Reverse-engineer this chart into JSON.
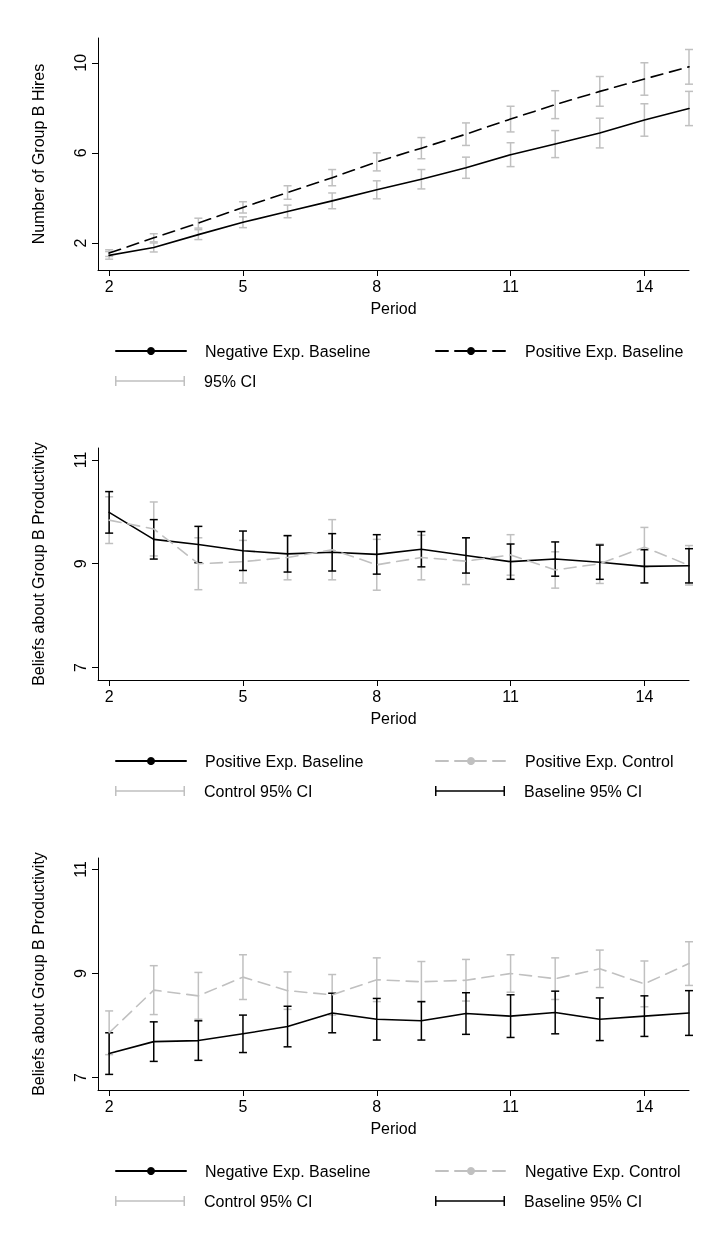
{
  "chart_data": [
    {
      "type": "line",
      "ylabel": "Number of Group B Hires",
      "xlabel": "Period",
      "x": [
        2,
        3,
        4,
        5,
        6,
        7,
        8,
        9,
        10,
        11,
        12,
        13,
        14,
        15
      ],
      "xlim": [
        1.75,
        15
      ],
      "xticks": [
        2,
        5,
        8,
        11,
        14
      ],
      "ylim": [
        0.8,
        11.1
      ],
      "yticks": [
        2,
        6,
        10
      ],
      "legend": "bottom",
      "annotations": [
        "95% CI"
      ],
      "series": [
        {
          "name": "Negative Exp. Baseline",
          "color": "#000000",
          "line_style": "solid",
          "values": [
            1.45,
            1.8,
            2.37,
            2.92,
            3.4,
            3.87,
            4.36,
            4.83,
            5.34,
            5.92,
            6.39,
            6.88,
            7.46,
            7.97
          ],
          "errors": [
            0.17,
            0.2,
            0.22,
            0.24,
            0.28,
            0.35,
            0.4,
            0.43,
            0.47,
            0.53,
            0.6,
            0.66,
            0.72,
            0.76
          ]
        },
        {
          "name": "Positive Exp. Baseline",
          "color": "#000000",
          "line_style": "dashed",
          "values": [
            1.55,
            2.23,
            2.88,
            3.58,
            4.24,
            4.9,
            5.6,
            6.21,
            6.83,
            7.5,
            8.14,
            8.73,
            9.28,
            9.82
          ],
          "errors": [
            0.15,
            0.18,
            0.22,
            0.25,
            0.3,
            0.36,
            0.4,
            0.47,
            0.5,
            0.57,
            0.62,
            0.66,
            0.72,
            0.77
          ]
        }
      ]
    },
    {
      "type": "line",
      "ylabel": "Beliefs about Group B Productivity",
      "xlabel": "Period",
      "x": [
        2,
        3,
        4,
        5,
        6,
        7,
        8,
        9,
        10,
        11,
        12,
        13,
        14,
        15
      ],
      "xlim": [
        1.75,
        15
      ],
      "xticks": [
        2,
        5,
        8,
        11,
        14
      ],
      "ylim": [
        6.76,
        11.23
      ],
      "yticks": [
        7,
        9,
        11
      ],
      "legend": "bottom",
      "annotations": [
        "Control 95% CI",
        "Baseline 95% CI"
      ],
      "series": [
        {
          "name": "Positive Exp. Baseline",
          "color": "#000000",
          "line_style": "solid",
          "values": [
            9.99,
            9.47,
            9.37,
            9.25,
            9.19,
            9.22,
            9.18,
            9.28,
            9.16,
            9.04,
            9.09,
            9.03,
            8.95,
            8.96
          ],
          "errors": [
            0.4,
            0.38,
            0.35,
            0.38,
            0.35,
            0.36,
            0.38,
            0.34,
            0.34,
            0.34,
            0.33,
            0.33,
            0.32,
            0.33
          ]
        },
        {
          "name": "Positive Exp. Control",
          "color": "#c0c0c0",
          "line_style": "dashed",
          "values": [
            9.84,
            9.67,
            9.0,
            9.04,
            9.12,
            9.27,
            8.98,
            9.12,
            9.05,
            9.17,
            8.88,
            9.0,
            9.32,
            8.97
          ],
          "errors": [
            0.45,
            0.52,
            0.5,
            0.41,
            0.43,
            0.58,
            0.49,
            0.43,
            0.45,
            0.39,
            0.35,
            0.38,
            0.38,
            0.38
          ]
        }
      ]
    },
    {
      "type": "line",
      "ylabel": "Beliefs about Group B Productivity",
      "xlabel": "Period",
      "x": [
        2,
        3,
        4,
        5,
        6,
        7,
        8,
        9,
        10,
        11,
        12,
        13,
        14,
        15
      ],
      "xlim": [
        1.75,
        15
      ],
      "xticks": [
        2,
        5,
        8,
        11,
        14
      ],
      "ylim": [
        6.76,
        11.22
      ],
      "yticks": [
        7,
        9,
        11
      ],
      "legend": "bottom",
      "annotations": [
        "Control 95% CI",
        "Baseline 95% CI"
      ],
      "series": [
        {
          "name": "Negative Exp. Baseline",
          "color": "#000000",
          "line_style": "solid",
          "values": [
            7.46,
            7.69,
            7.71,
            7.84,
            7.98,
            8.24,
            8.12,
            8.09,
            8.23,
            8.18,
            8.25,
            8.12,
            8.18,
            8.24
          ],
          "errors": [
            0.4,
            0.38,
            0.38,
            0.36,
            0.39,
            0.38,
            0.4,
            0.37,
            0.4,
            0.41,
            0.41,
            0.41,
            0.39,
            0.43
          ]
        },
        {
          "name": "Negative Exp. Control",
          "color": "#c0c0c0",
          "line_style": "dashed",
          "values": [
            7.86,
            8.68,
            8.57,
            8.93,
            8.67,
            8.59,
            8.88,
            8.84,
            8.87,
            9.0,
            8.9,
            9.09,
            8.8,
            9.19
          ],
          "errors": [
            0.42,
            0.47,
            0.45,
            0.43,
            0.36,
            0.39,
            0.42,
            0.39,
            0.4,
            0.36,
            0.4,
            0.36,
            0.44,
            0.42
          ]
        }
      ]
    }
  ]
}
